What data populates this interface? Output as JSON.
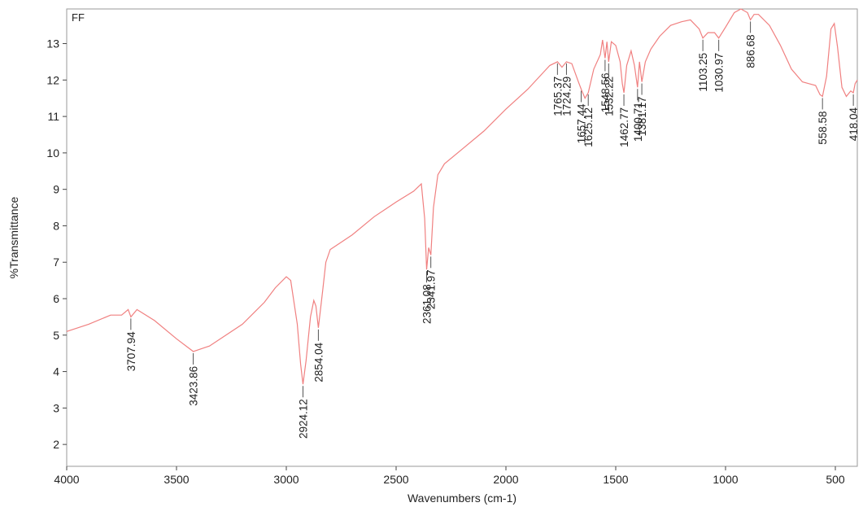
{
  "chart_data": {
    "type": "line",
    "title": "",
    "corner_label": "FF",
    "xlabel": "Wavenumbers (cm-1)",
    "ylabel": "%Transmittance",
    "xlim": [
      4000,
      400
    ],
    "ylim": [
      1.4,
      13.95
    ],
    "x_ticks": [
      4000,
      3500,
      3000,
      2500,
      2000,
      1500,
      1000,
      500
    ],
    "y_ticks": [
      2,
      3,
      4,
      5,
      6,
      7,
      8,
      9,
      10,
      11,
      12,
      13
    ],
    "grid": false,
    "line_color": "#f08080",
    "series": [
      {
        "points": [
          [
            4000,
            5.1
          ],
          [
            3900,
            5.3
          ],
          [
            3800,
            5.55
          ],
          [
            3750,
            5.55
          ],
          [
            3720,
            5.7
          ],
          [
            3707.94,
            5.5
          ],
          [
            3680,
            5.7
          ],
          [
            3600,
            5.4
          ],
          [
            3500,
            4.9
          ],
          [
            3423.86,
            4.55
          ],
          [
            3350,
            4.7
          ],
          [
            3200,
            5.3
          ],
          [
            3100,
            5.9
          ],
          [
            3050,
            6.3
          ],
          [
            3000,
            6.6
          ],
          [
            2980,
            6.5
          ],
          [
            2950,
            5.3
          ],
          [
            2935,
            4.2
          ],
          [
            2924.12,
            3.65
          ],
          [
            2910,
            4.3
          ],
          [
            2890,
            5.5
          ],
          [
            2875,
            5.95
          ],
          [
            2865,
            5.8
          ],
          [
            2854.04,
            5.2
          ],
          [
            2835,
            6.2
          ],
          [
            2820,
            7.0
          ],
          [
            2800,
            7.35
          ],
          [
            2700,
            7.75
          ],
          [
            2600,
            8.25
          ],
          [
            2500,
            8.65
          ],
          [
            2420,
            8.95
          ],
          [
            2385,
            9.15
          ],
          [
            2370,
            8.2
          ],
          [
            2361.08,
            6.8
          ],
          [
            2352,
            7.4
          ],
          [
            2341.97,
            7.2
          ],
          [
            2330,
            8.5
          ],
          [
            2310,
            9.4
          ],
          [
            2280,
            9.7
          ],
          [
            2200,
            10.1
          ],
          [
            2100,
            10.6
          ],
          [
            2000,
            11.2
          ],
          [
            1900,
            11.75
          ],
          [
            1800,
            12.4
          ],
          [
            1765.37,
            12.5
          ],
          [
            1745,
            12.35
          ],
          [
            1724.29,
            12.5
          ],
          [
            1700,
            12.45
          ],
          [
            1670,
            11.95
          ],
          [
            1657.44,
            11.75
          ],
          [
            1640,
            11.5
          ],
          [
            1625.12,
            11.65
          ],
          [
            1600,
            12.3
          ],
          [
            1570,
            12.7
          ],
          [
            1560,
            13.1
          ],
          [
            1548.56,
            12.6
          ],
          [
            1540,
            13.05
          ],
          [
            1532.22,
            12.5
          ],
          [
            1520,
            13.05
          ],
          [
            1500,
            12.95
          ],
          [
            1480,
            12.5
          ],
          [
            1470,
            11.9
          ],
          [
            1462.77,
            11.65
          ],
          [
            1450,
            12.4
          ],
          [
            1430,
            12.8
          ],
          [
            1415,
            12.4
          ],
          [
            1400.71,
            11.8
          ],
          [
            1392,
            12.5
          ],
          [
            1381.17,
            11.95
          ],
          [
            1365,
            12.5
          ],
          [
            1340,
            12.85
          ],
          [
            1300,
            13.2
          ],
          [
            1250,
            13.5
          ],
          [
            1200,
            13.6
          ],
          [
            1160,
            13.65
          ],
          [
            1120,
            13.4
          ],
          [
            1103.25,
            13.15
          ],
          [
            1080,
            13.3
          ],
          [
            1050,
            13.3
          ],
          [
            1030.97,
            13.15
          ],
          [
            1000,
            13.45
          ],
          [
            960,
            13.85
          ],
          [
            930,
            13.95
          ],
          [
            900,
            13.85
          ],
          [
            886.68,
            13.65
          ],
          [
            870,
            13.8
          ],
          [
            850,
            13.8
          ],
          [
            800,
            13.5
          ],
          [
            750,
            12.95
          ],
          [
            700,
            12.3
          ],
          [
            650,
            11.95
          ],
          [
            620,
            11.9
          ],
          [
            590,
            11.85
          ],
          [
            570,
            11.6
          ],
          [
            558.58,
            11.55
          ],
          [
            540,
            12.1
          ],
          [
            520,
            13.4
          ],
          [
            505,
            13.55
          ],
          [
            490,
            12.9
          ],
          [
            470,
            11.8
          ],
          [
            450,
            11.55
          ],
          [
            430,
            11.7
          ],
          [
            418.04,
            11.65
          ],
          [
            410,
            11.9
          ],
          [
            400,
            12.0
          ]
        ]
      }
    ],
    "peaks": [
      {
        "label": "3707.94",
        "x": 3707.94,
        "y": 5.5
      },
      {
        "label": "3423.86",
        "x": 3423.86,
        "y": 4.55
      },
      {
        "label": "2924.12",
        "x": 2924.12,
        "y": 3.65
      },
      {
        "label": "2854.04",
        "x": 2854.04,
        "y": 5.2
      },
      {
        "label": "2361.08",
        "x": 2361.08,
        "y": 6.8
      },
      {
        "label": "2341.97",
        "x": 2341.97,
        "y": 7.2
      },
      {
        "label": "1765.37",
        "x": 1765.37,
        "y": 12.5
      },
      {
        "label": "1724.29",
        "x": 1724.29,
        "y": 12.5
      },
      {
        "label": "1657.44",
        "x": 1657.44,
        "y": 11.75
      },
      {
        "label": "1625.12",
        "x": 1625.12,
        "y": 11.65
      },
      {
        "label": "1548.56",
        "x": 1548.56,
        "y": 12.6
      },
      {
        "label": "1532.22",
        "x": 1532.22,
        "y": 12.5
      },
      {
        "label": "1462.77",
        "x": 1462.77,
        "y": 11.65
      },
      {
        "label": "1400.71",
        "x": 1400.71,
        "y": 11.8
      },
      {
        "label": "1381.17",
        "x": 1381.17,
        "y": 11.95
      },
      {
        "label": "1103.25",
        "x": 1103.25,
        "y": 13.15
      },
      {
        "label": "1030.97",
        "x": 1030.97,
        "y": 13.15
      },
      {
        "label": "886.68",
        "x": 886.68,
        "y": 13.65
      },
      {
        "label": "558.58",
        "x": 558.58,
        "y": 11.55
      },
      {
        "label": "418.04",
        "x": 418.04,
        "y": 11.65
      }
    ]
  }
}
